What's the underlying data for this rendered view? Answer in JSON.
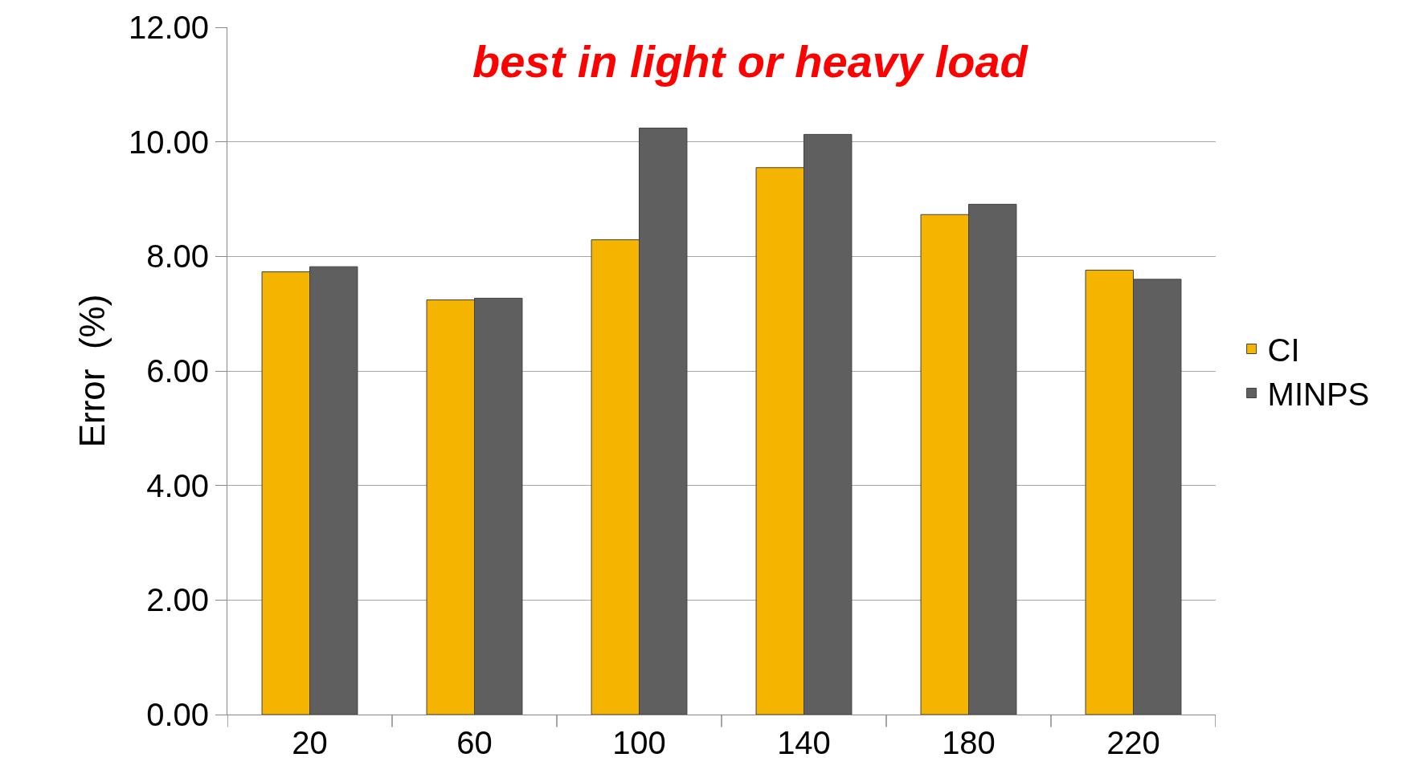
{
  "chart_data": {
    "type": "bar",
    "title": "best in light or heavy load",
    "ylabel": "Error  (%)",
    "categories": [
      "20",
      "60",
      "100",
      "140",
      "180",
      "220"
    ],
    "series": [
      {
        "name": "CI",
        "color": "#f5b400",
        "values": [
          7.73,
          7.24,
          8.29,
          9.55,
          8.73,
          7.76
        ]
      },
      {
        "name": "MINPS",
        "color": "#5f5f5f",
        "values": [
          7.82,
          7.27,
          10.24,
          10.13,
          8.91,
          7.6
        ]
      }
    ],
    "ylim": [
      0,
      12
    ],
    "yticks": [
      {
        "value": 0,
        "label": "0.00"
      },
      {
        "value": 2,
        "label": "2.00"
      },
      {
        "value": 4,
        "label": "4.00"
      },
      {
        "value": 6,
        "label": "6.00"
      },
      {
        "value": 8,
        "label": "8.00"
      },
      {
        "value": 10,
        "label": "10.00"
      },
      {
        "value": 12,
        "label": "12.00"
      }
    ],
    "grid": "y",
    "legend": "right"
  }
}
